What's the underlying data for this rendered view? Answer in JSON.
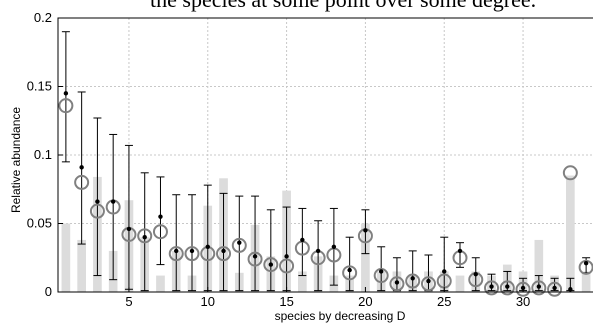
{
  "page_text": "the species at some point over some degree.",
  "chart_data": {
    "type": "bar",
    "title": "",
    "xlabel": "species by decreasing D",
    "ylabel": "Relative abundance",
    "xlim": [
      0.5,
      34.5
    ],
    "ylim": [
      0,
      0.2
    ],
    "xticks": [
      5,
      10,
      15,
      20,
      25,
      30
    ],
    "yticks": [
      0,
      0.05,
      0.1,
      0.15,
      0.2
    ],
    "grid": true,
    "colors": {
      "bars": "#dcdcdc",
      "circles": "#808080",
      "points": "#000000",
      "errorbars": "#000000",
      "grid": "#c8c8c8"
    },
    "x": [
      1,
      2,
      3,
      4,
      5,
      6,
      7,
      8,
      9,
      10,
      11,
      12,
      13,
      14,
      15,
      16,
      17,
      18,
      19,
      20,
      21,
      22,
      23,
      24,
      25,
      26,
      27,
      28,
      29,
      30,
      31,
      32,
      33,
      34
    ],
    "series": [
      {
        "type": "bar",
        "values": [
          0.05,
          0.038,
          0.084,
          0.03,
          0.067,
          0.04,
          0.012,
          0.03,
          0.012,
          0.063,
          0.083,
          0.014,
          0.049,
          0.026,
          0.074,
          0.015,
          0.026,
          0.012,
          0.012,
          0.05,
          0.015,
          0.015,
          0.012,
          0.015,
          0.015,
          0.012,
          0.015,
          0.012,
          0.02,
          0.015,
          0.038,
          0.012,
          0.085,
          0.015
        ]
      },
      {
        "type": "circle",
        "values": [
          0.136,
          0.08,
          0.059,
          0.062,
          0.042,
          0.041,
          0.044,
          0.028,
          0.028,
          0.028,
          0.028,
          0.034,
          0.024,
          0.02,
          0.019,
          0.032,
          0.025,
          0.027,
          0.014,
          0.041,
          0.012,
          0.006,
          0.008,
          0.006,
          0.008,
          0.025,
          0.009,
          0.003,
          0.003,
          0.002,
          0.003,
          0.002,
          0.087,
          0.018
        ]
      },
      {
        "type": "point_with_errorbar",
        "values": [
          0.145,
          0.091,
          0.066,
          0.066,
          0.046,
          0.04,
          0.055,
          0.03,
          0.03,
          0.033,
          0.03,
          0.036,
          0.026,
          0.02,
          0.026,
          0.038,
          0.03,
          0.033,
          0.016,
          0.045,
          0.015,
          0.007,
          0.01,
          0.008,
          0.015,
          0.03,
          0.013,
          0.004,
          0.004,
          0.003,
          0.004,
          0.003,
          0.002,
          0.021
        ],
        "err_low": [
          0.095,
          0.035,
          0.012,
          0.009,
          0.002,
          0.001,
          0.02,
          0.001,
          0.001,
          0.001,
          0.001,
          0.001,
          0.001,
          0.001,
          0.001,
          0.012,
          0.001,
          0.005,
          0.001,
          0.028,
          0.001,
          0.001,
          0.001,
          0.001,
          0.001,
          0.018,
          0.001,
          0.001,
          0.001,
          0.001,
          0.001,
          0.001,
          0.001,
          0.014
        ],
        "err_high": [
          0.19,
          0.146,
          0.127,
          0.115,
          0.107,
          0.087,
          0.084,
          0.071,
          0.071,
          0.078,
          0.072,
          0.07,
          0.07,
          0.06,
          0.062,
          0.061,
          0.052,
          0.061,
          0.04,
          0.06,
          0.033,
          0.025,
          0.03,
          0.027,
          0.04,
          0.036,
          0.025,
          0.013,
          0.015,
          0.01,
          0.012,
          0.01,
          0.01,
          0.025
        ]
      }
    ]
  }
}
